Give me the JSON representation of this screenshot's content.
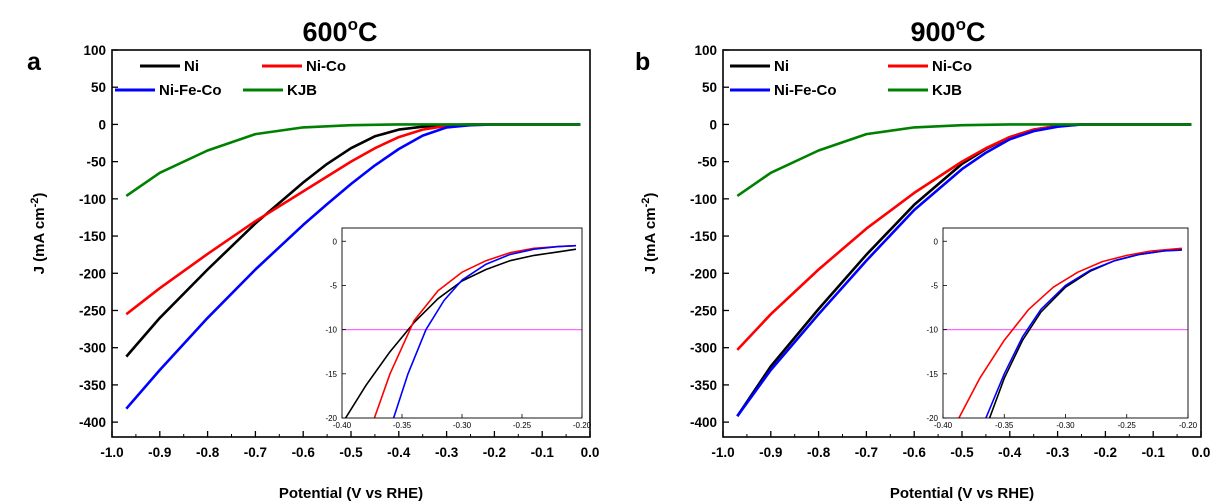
{
  "chart_data": [
    {
      "panel": "a",
      "title": "600",
      "title_sup": "o",
      "title_unit": "C",
      "type": "line",
      "xlabel": "Potential (V vs RHE)",
      "ylabel": "J (mA cm",
      "ylabel_sup": "-2",
      "ylabel_end": ")",
      "xlim": [
        -1.0,
        0.0
      ],
      "ylim": [
        -420,
        100
      ],
      "x_ticks": [
        "-1.0",
        "-0.9",
        "-0.8",
        "-0.7",
        "-0.6",
        "-0.5",
        "-0.4",
        "-0.3",
        "-0.2",
        "-0.1",
        "0.0"
      ],
      "y_ticks": [
        "100",
        "50",
        "0",
        "-50",
        "-100",
        "-150",
        "-200",
        "-250",
        "-300",
        "-350",
        "-400"
      ],
      "legend_position": "top",
      "series": [
        {
          "name": "Ni",
          "color": "#000000",
          "points": [
            [
              -0.97,
              -312
            ],
            [
              -0.9,
              -260
            ],
            [
              -0.8,
              -195
            ],
            [
              -0.7,
              -133
            ],
            [
              -0.6,
              -78
            ],
            [
              -0.55,
              -53
            ],
            [
              -0.5,
              -32
            ],
            [
              -0.45,
              -16
            ],
            [
              -0.4,
              -7
            ],
            [
              -0.35,
              -3
            ],
            [
              -0.3,
              -1
            ],
            [
              -0.25,
              0
            ],
            [
              -0.02,
              0
            ]
          ]
        },
        {
          "name": "Ni-Co",
          "color": "#ff0000",
          "points": [
            [
              -0.97,
              -255
            ],
            [
              -0.9,
              -220
            ],
            [
              -0.8,
              -174
            ],
            [
              -0.7,
              -130
            ],
            [
              -0.6,
              -90
            ],
            [
              -0.55,
              -70
            ],
            [
              -0.5,
              -50
            ],
            [
              -0.45,
              -32
            ],
            [
              -0.4,
              -17
            ],
            [
              -0.35,
              -7
            ],
            [
              -0.3,
              -2
            ],
            [
              -0.25,
              0
            ],
            [
              -0.02,
              0
            ]
          ]
        },
        {
          "name": "Ni-Fe-Co",
          "color": "#0000ff",
          "points": [
            [
              -0.97,
              -382
            ],
            [
              -0.9,
              -330
            ],
            [
              -0.8,
              -260
            ],
            [
              -0.7,
              -195
            ],
            [
              -0.6,
              -135
            ],
            [
              -0.55,
              -107
            ],
            [
              -0.5,
              -80
            ],
            [
              -0.45,
              -55
            ],
            [
              -0.4,
              -33
            ],
            [
              -0.35,
              -15
            ],
            [
              -0.3,
              -4
            ],
            [
              -0.25,
              -1
            ],
            [
              -0.2,
              0
            ],
            [
              -0.02,
              0
            ]
          ]
        },
        {
          "name": "KJB",
          "color": "#008000",
          "points": [
            [
              -0.97,
              -96
            ],
            [
              -0.9,
              -65
            ],
            [
              -0.8,
              -35
            ],
            [
              -0.7,
              -13
            ],
            [
              -0.6,
              -4
            ],
            [
              -0.5,
              -1
            ],
            [
              -0.4,
              0
            ],
            [
              -0.02,
              0
            ]
          ]
        }
      ],
      "inset": {
        "xlim": [
          -0.4,
          -0.2
        ],
        "ylim": [
          -20,
          1.5
        ],
        "x_ticks": [
          "-0.40",
          "-0.35",
          "-0.30",
          "-0.25",
          "-0.20"
        ],
        "y_ticks": [
          "0",
          "-5",
          "-10",
          "-15",
          "-20"
        ],
        "reference_line": {
          "y": -10,
          "color": "#ff66ff"
        },
        "series": [
          {
            "name": "Ni",
            "color": "#000000",
            "points": [
              [
                -0.397,
                -20
              ],
              [
                -0.38,
                -16.3
              ],
              [
                -0.36,
                -12.5
              ],
              [
                -0.34,
                -9.2
              ],
              [
                -0.32,
                -6.5
              ],
              [
                -0.3,
                -4.5
              ],
              [
                -0.28,
                -3.2
              ],
              [
                -0.26,
                -2.2
              ],
              [
                -0.24,
                -1.6
              ],
              [
                -0.22,
                -1.2
              ],
              [
                -0.205,
                -0.9
              ]
            ]
          },
          {
            "name": "Ni-Co",
            "color": "#ff0000",
            "points": [
              [
                -0.373,
                -20
              ],
              [
                -0.36,
                -15
              ],
              [
                -0.34,
                -9
              ],
              [
                -0.32,
                -5.6
              ],
              [
                -0.3,
                -3.5
              ],
              [
                -0.28,
                -2.2
              ],
              [
                -0.26,
                -1.3
              ],
              [
                -0.24,
                -0.8
              ],
              [
                -0.22,
                -0.6
              ],
              [
                -0.205,
                -0.5
              ]
            ]
          },
          {
            "name": "Ni-Fe-Co",
            "color": "#0000ff",
            "points": [
              [
                -0.357,
                -20
              ],
              [
                -0.345,
                -15
              ],
              [
                -0.33,
                -10
              ],
              [
                -0.315,
                -6.7
              ],
              [
                -0.3,
                -4.4
              ],
              [
                -0.28,
                -2.6
              ],
              [
                -0.26,
                -1.5
              ],
              [
                -0.24,
                -0.9
              ],
              [
                -0.22,
                -0.6
              ],
              [
                -0.205,
                -0.5
              ]
            ]
          }
        ]
      }
    },
    {
      "panel": "b",
      "title": "900",
      "title_sup": "o",
      "title_unit": "C",
      "type": "line",
      "xlabel": "Potential (V vs RHE)",
      "ylabel": "J (mA cm",
      "ylabel_sup": "-2",
      "ylabel_end": ")",
      "xlim": [
        -1.0,
        0.0
      ],
      "ylim": [
        -420,
        100
      ],
      "x_ticks": [
        "-1.0",
        "-0.9",
        "-0.8",
        "-0.7",
        "-0.6",
        "-0.5",
        "-0.4",
        "-0.3",
        "-0.2",
        "-0.1",
        "0.0"
      ],
      "y_ticks": [
        "100",
        "50",
        "0",
        "-50",
        "-100",
        "-150",
        "-200",
        "-250",
        "-300",
        "-350",
        "-400"
      ],
      "legend_position": "top",
      "series": [
        {
          "name": "Ni",
          "color": "#000000",
          "points": [
            [
              -0.97,
              -392
            ],
            [
              -0.9,
              -325
            ],
            [
              -0.8,
              -248
            ],
            [
              -0.7,
              -175
            ],
            [
              -0.6,
              -108
            ],
            [
              -0.5,
              -53
            ],
            [
              -0.45,
              -33
            ],
            [
              -0.4,
              -17
            ],
            [
              -0.35,
              -7
            ],
            [
              -0.3,
              -2
            ],
            [
              -0.25,
              0
            ],
            [
              -0.02,
              0
            ]
          ]
        },
        {
          "name": "Ni-Co",
          "color": "#ff0000",
          "points": [
            [
              -0.97,
              -303
            ],
            [
              -0.9,
              -255
            ],
            [
              -0.8,
              -195
            ],
            [
              -0.7,
              -140
            ],
            [
              -0.6,
              -92
            ],
            [
              -0.5,
              -50
            ],
            [
              -0.45,
              -32
            ],
            [
              -0.4,
              -17
            ],
            [
              -0.35,
              -7
            ],
            [
              -0.3,
              -2
            ],
            [
              -0.25,
              0
            ],
            [
              -0.02,
              0
            ]
          ]
        },
        {
          "name": "Ni-Fe-Co",
          "color": "#0000ff",
          "points": [
            [
              -0.97,
              -392
            ],
            [
              -0.9,
              -330
            ],
            [
              -0.8,
              -255
            ],
            [
              -0.7,
              -183
            ],
            [
              -0.6,
              -115
            ],
            [
              -0.5,
              -60
            ],
            [
              -0.45,
              -38
            ],
            [
              -0.4,
              -20
            ],
            [
              -0.35,
              -9
            ],
            [
              -0.3,
              -3
            ],
            [
              -0.25,
              0
            ],
            [
              -0.02,
              0
            ]
          ]
        },
        {
          "name": "KJB",
          "color": "#008000",
          "points": [
            [
              -0.97,
              -96
            ],
            [
              -0.9,
              -65
            ],
            [
              -0.8,
              -35
            ],
            [
              -0.7,
              -13
            ],
            [
              -0.6,
              -4
            ],
            [
              -0.5,
              -1
            ],
            [
              -0.4,
              0
            ],
            [
              -0.02,
              0
            ]
          ]
        }
      ],
      "inset": {
        "xlim": [
          -0.4,
          -0.2
        ],
        "ylim": [
          -20,
          1.5
        ],
        "x_ticks": [
          "-0.40",
          "-0.35",
          "-0.30",
          "-0.25",
          "-0.20"
        ],
        "y_ticks": [
          "0",
          "-5",
          "-10",
          "-15",
          "-20"
        ],
        "reference_line": {
          "y": -10,
          "color": "#ff66ff"
        },
        "series": [
          {
            "name": "Ni",
            "color": "#000000",
            "points": [
              [
                -0.362,
                -20
              ],
              [
                -0.35,
                -15.5
              ],
              [
                -0.335,
                -11.2
              ],
              [
                -0.32,
                -8
              ],
              [
                -0.3,
                -5.2
              ],
              [
                -0.28,
                -3.4
              ],
              [
                -0.26,
                -2.2
              ],
              [
                -0.24,
                -1.5
              ],
              [
                -0.22,
                -1.1
              ],
              [
                -0.205,
                -0.9
              ]
            ]
          },
          {
            "name": "Ni-Co",
            "color": "#ff0000",
            "points": [
              [
                -0.387,
                -20
              ],
              [
                -0.37,
                -15.5
              ],
              [
                -0.35,
                -11.2
              ],
              [
                -0.33,
                -7.7
              ],
              [
                -0.31,
                -5.2
              ],
              [
                -0.29,
                -3.5
              ],
              [
                -0.27,
                -2.3
              ],
              [
                -0.25,
                -1.6
              ],
              [
                -0.23,
                -1.1
              ],
              [
                -0.205,
                -0.8
              ]
            ]
          },
          {
            "name": "Ni-Fe-Co",
            "color": "#0000ff",
            "points": [
              [
                -0.365,
                -20
              ],
              [
                -0.35,
                -15
              ],
              [
                -0.335,
                -10.8
              ],
              [
                -0.32,
                -7.7
              ],
              [
                -0.3,
                -5
              ],
              [
                -0.28,
                -3.3
              ],
              [
                -0.26,
                -2.2
              ],
              [
                -0.24,
                -1.5
              ],
              [
                -0.22,
                -1.1
              ],
              [
                -0.205,
                -1
              ]
            ]
          }
        ]
      }
    }
  ]
}
